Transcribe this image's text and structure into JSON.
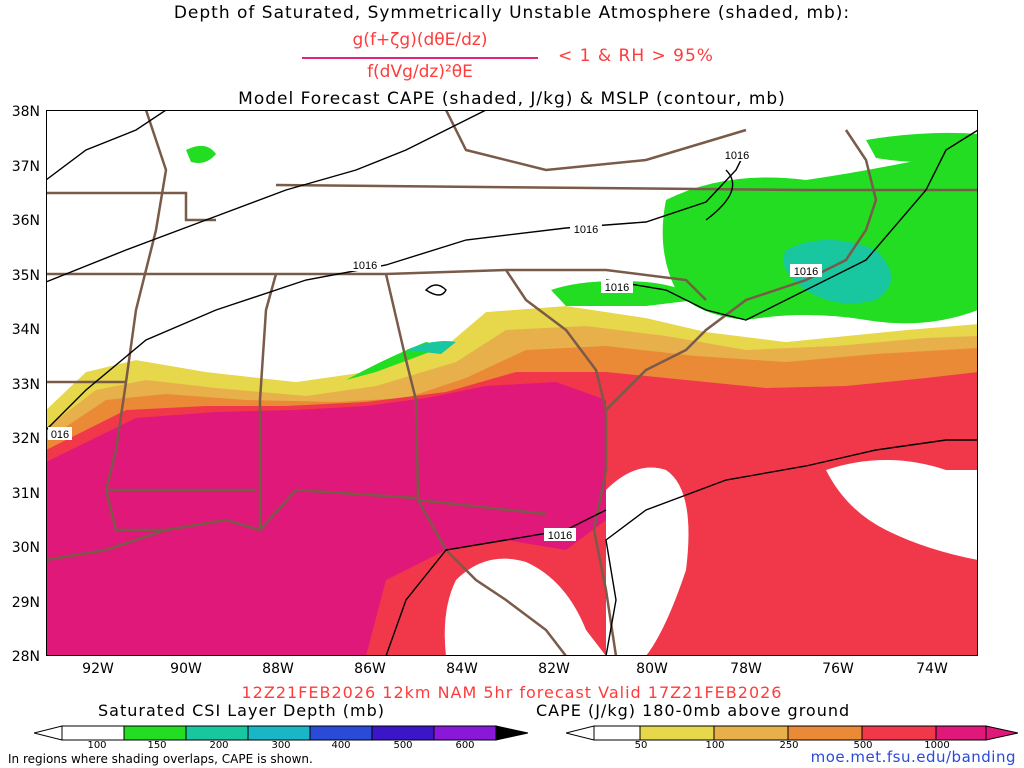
{
  "titles": {
    "line1": "Depth of Saturated, Symmetrically Unstable Atmosphere (shaded, mb):",
    "formula_numerator": "g(f+ζg)(dθE/dz)",
    "formula_denominator": "f(dVg/dz)²θE",
    "formula_condition": "< 1 & RH > 95%",
    "line2": "Model Forecast CAPE (shaded, J/kg) & MSLP (contour, mb)"
  },
  "map": {
    "lat_labels": [
      "38N",
      "37N",
      "36N",
      "35N",
      "34N",
      "33N",
      "32N",
      "31N",
      "30N",
      "29N",
      "28N"
    ],
    "lon_labels": [
      "92W",
      "90W",
      "88W",
      "86W",
      "84W",
      "82W",
      "80W",
      "78W",
      "76W",
      "74W"
    ],
    "isobar_labels": [
      "1016",
      "1016",
      "1016",
      "1016",
      "1016",
      "1016",
      "016"
    ],
    "colors": {
      "ocean_bg": "#ffffff",
      "state_lines": "#7a5a48",
      "isobar": "#000000",
      "cape_light_yellow": "#e6d84a",
      "cape_yellow_orange": "#e8b04a",
      "cape_orange": "#ea8a36",
      "cape_red_orange": "#f05a3a",
      "cape_red": "#f0384a",
      "cape_magenta": "#e0187a",
      "csi_green": "#22dd22",
      "csi_teal": "#18c6a0"
    }
  },
  "footer": {
    "valid": "12Z21FEB2026 12km NAM 5hr forecast Valid 17Z21FEB2026",
    "csi_label": "Saturated CSI Layer Depth (mb)",
    "cape_label": "CAPE (J/kg) 180-0mb above ground",
    "csi_ticks": [
      "100",
      "150",
      "200",
      "300",
      "400",
      "500",
      "600"
    ],
    "cape_ticks": [
      "50",
      "100",
      "250",
      "500",
      "1000"
    ],
    "footnote": "In regions where shading overlaps, CAPE is shown.",
    "credit": "moe.met.fsu.edu/banding"
  }
}
